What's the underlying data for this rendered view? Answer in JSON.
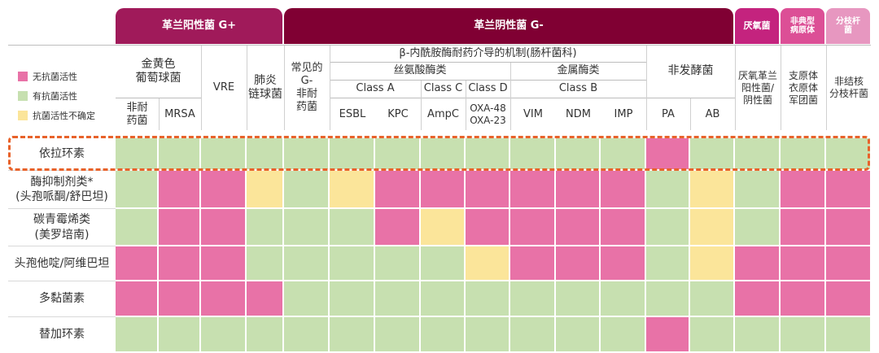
{
  "colors": {
    "none": "#e872a7",
    "active": "#c7e0b0",
    "uncertain": "#fbe59a",
    "gram_pos": "#a01a5a",
    "gram_neg": "#800033",
    "anaerobe": "#c4237e",
    "atypical": "#dc4f96",
    "mycobacteria": "#e797c0",
    "highlight": "#e8622a"
  },
  "bands": {
    "gram_pos": "革兰阳性菌 G+",
    "gram_neg": "革兰阴性菌 G-",
    "anaerobe": "厌氧菌",
    "atypical": "非典型病原体",
    "mycobacteria": "分枝杆菌"
  },
  "legend": {
    "none": "无抗菌活性",
    "active": "有抗菌活性",
    "uncertain": "抗菌活性不确定"
  },
  "headers": {
    "staph": "金黄色\n葡萄球菌",
    "non_resistant_1": "非耐\n药菌",
    "mrsa": "MRSA",
    "vre": "VRE",
    "pneumo": "肺炎\n链球菌",
    "common_gneg": "常见的\nG-\n非耐\n药菌",
    "beta_lactamase": "β-内酰胺酶耐药介导的机制(肠杆菌科)",
    "serine": "丝氨酸酶类",
    "class_a": "Class A",
    "class_c": "Class C",
    "class_d": "Class D",
    "esbl": "ESBL",
    "kpc": "KPC",
    "ampc": "AmpC",
    "oxa": "OXA-48\nOXA-23",
    "metallo": "金属酶类",
    "class_b": "Class B",
    "vim": "VIM",
    "ndm": "NDM",
    "imp": "IMP",
    "nonferm": "非发酵菌",
    "pa": "PA",
    "ab": "AB",
    "anaerobe_col": "厌氧革兰\n阳性菌/\n阴性菌",
    "atypical_col": "支原体\n衣原体\n军团菌",
    "mycobact_col": "非结核\n分枝杆菌"
  },
  "chart_data": {
    "type": "heatmap",
    "legend_placement": "left",
    "value_legend": {
      "0": "无抗菌活性",
      "1": "有抗菌活性",
      "2": "抗菌活性不确定"
    },
    "columns": [
      "非耐药菌",
      "MRSA",
      "VRE",
      "肺炎链球菌",
      "常见的G-非耐药菌",
      "ESBL",
      "KPC",
      "AmpC",
      "OXA-48 OXA-23",
      "VIM",
      "NDM",
      "IMP",
      "PA",
      "AB",
      "厌氧革兰阳性菌/阴性菌",
      "支原体衣原体军团菌",
      "非结核分枝杆菌"
    ],
    "rows": [
      {
        "label": "依拉环素",
        "values": [
          1,
          1,
          1,
          1,
          1,
          1,
          1,
          1,
          1,
          1,
          1,
          1,
          0,
          1,
          1,
          1,
          1
        ],
        "highlighted": true
      },
      {
        "label": "酶抑制剂类*\n(头孢哌酮/舒巴坦)",
        "values": [
          1,
          0,
          0,
          2,
          1,
          2,
          0,
          0,
          0,
          0,
          0,
          0,
          1,
          2,
          1,
          0,
          0
        ]
      },
      {
        "label": "碳青霉烯类\n(美罗培南)",
        "values": [
          1,
          0,
          0,
          1,
          1,
          1,
          0,
          2,
          0,
          0,
          0,
          0,
          1,
          2,
          1,
          0,
          0
        ]
      },
      {
        "label": "头孢他啶/阿维巴坦",
        "values": [
          0,
          0,
          0,
          1,
          1,
          1,
          1,
          1,
          2,
          0,
          0,
          0,
          1,
          2,
          0,
          0,
          0
        ]
      },
      {
        "label": "多黏菌素",
        "values": [
          0,
          0,
          0,
          0,
          1,
          1,
          1,
          1,
          1,
          1,
          1,
          1,
          1,
          1,
          0,
          0,
          0
        ]
      },
      {
        "label": "替加环素",
        "values": [
          1,
          1,
          1,
          1,
          1,
          1,
          1,
          1,
          1,
          1,
          1,
          1,
          0,
          1,
          1,
          1,
          1
        ]
      }
    ]
  }
}
